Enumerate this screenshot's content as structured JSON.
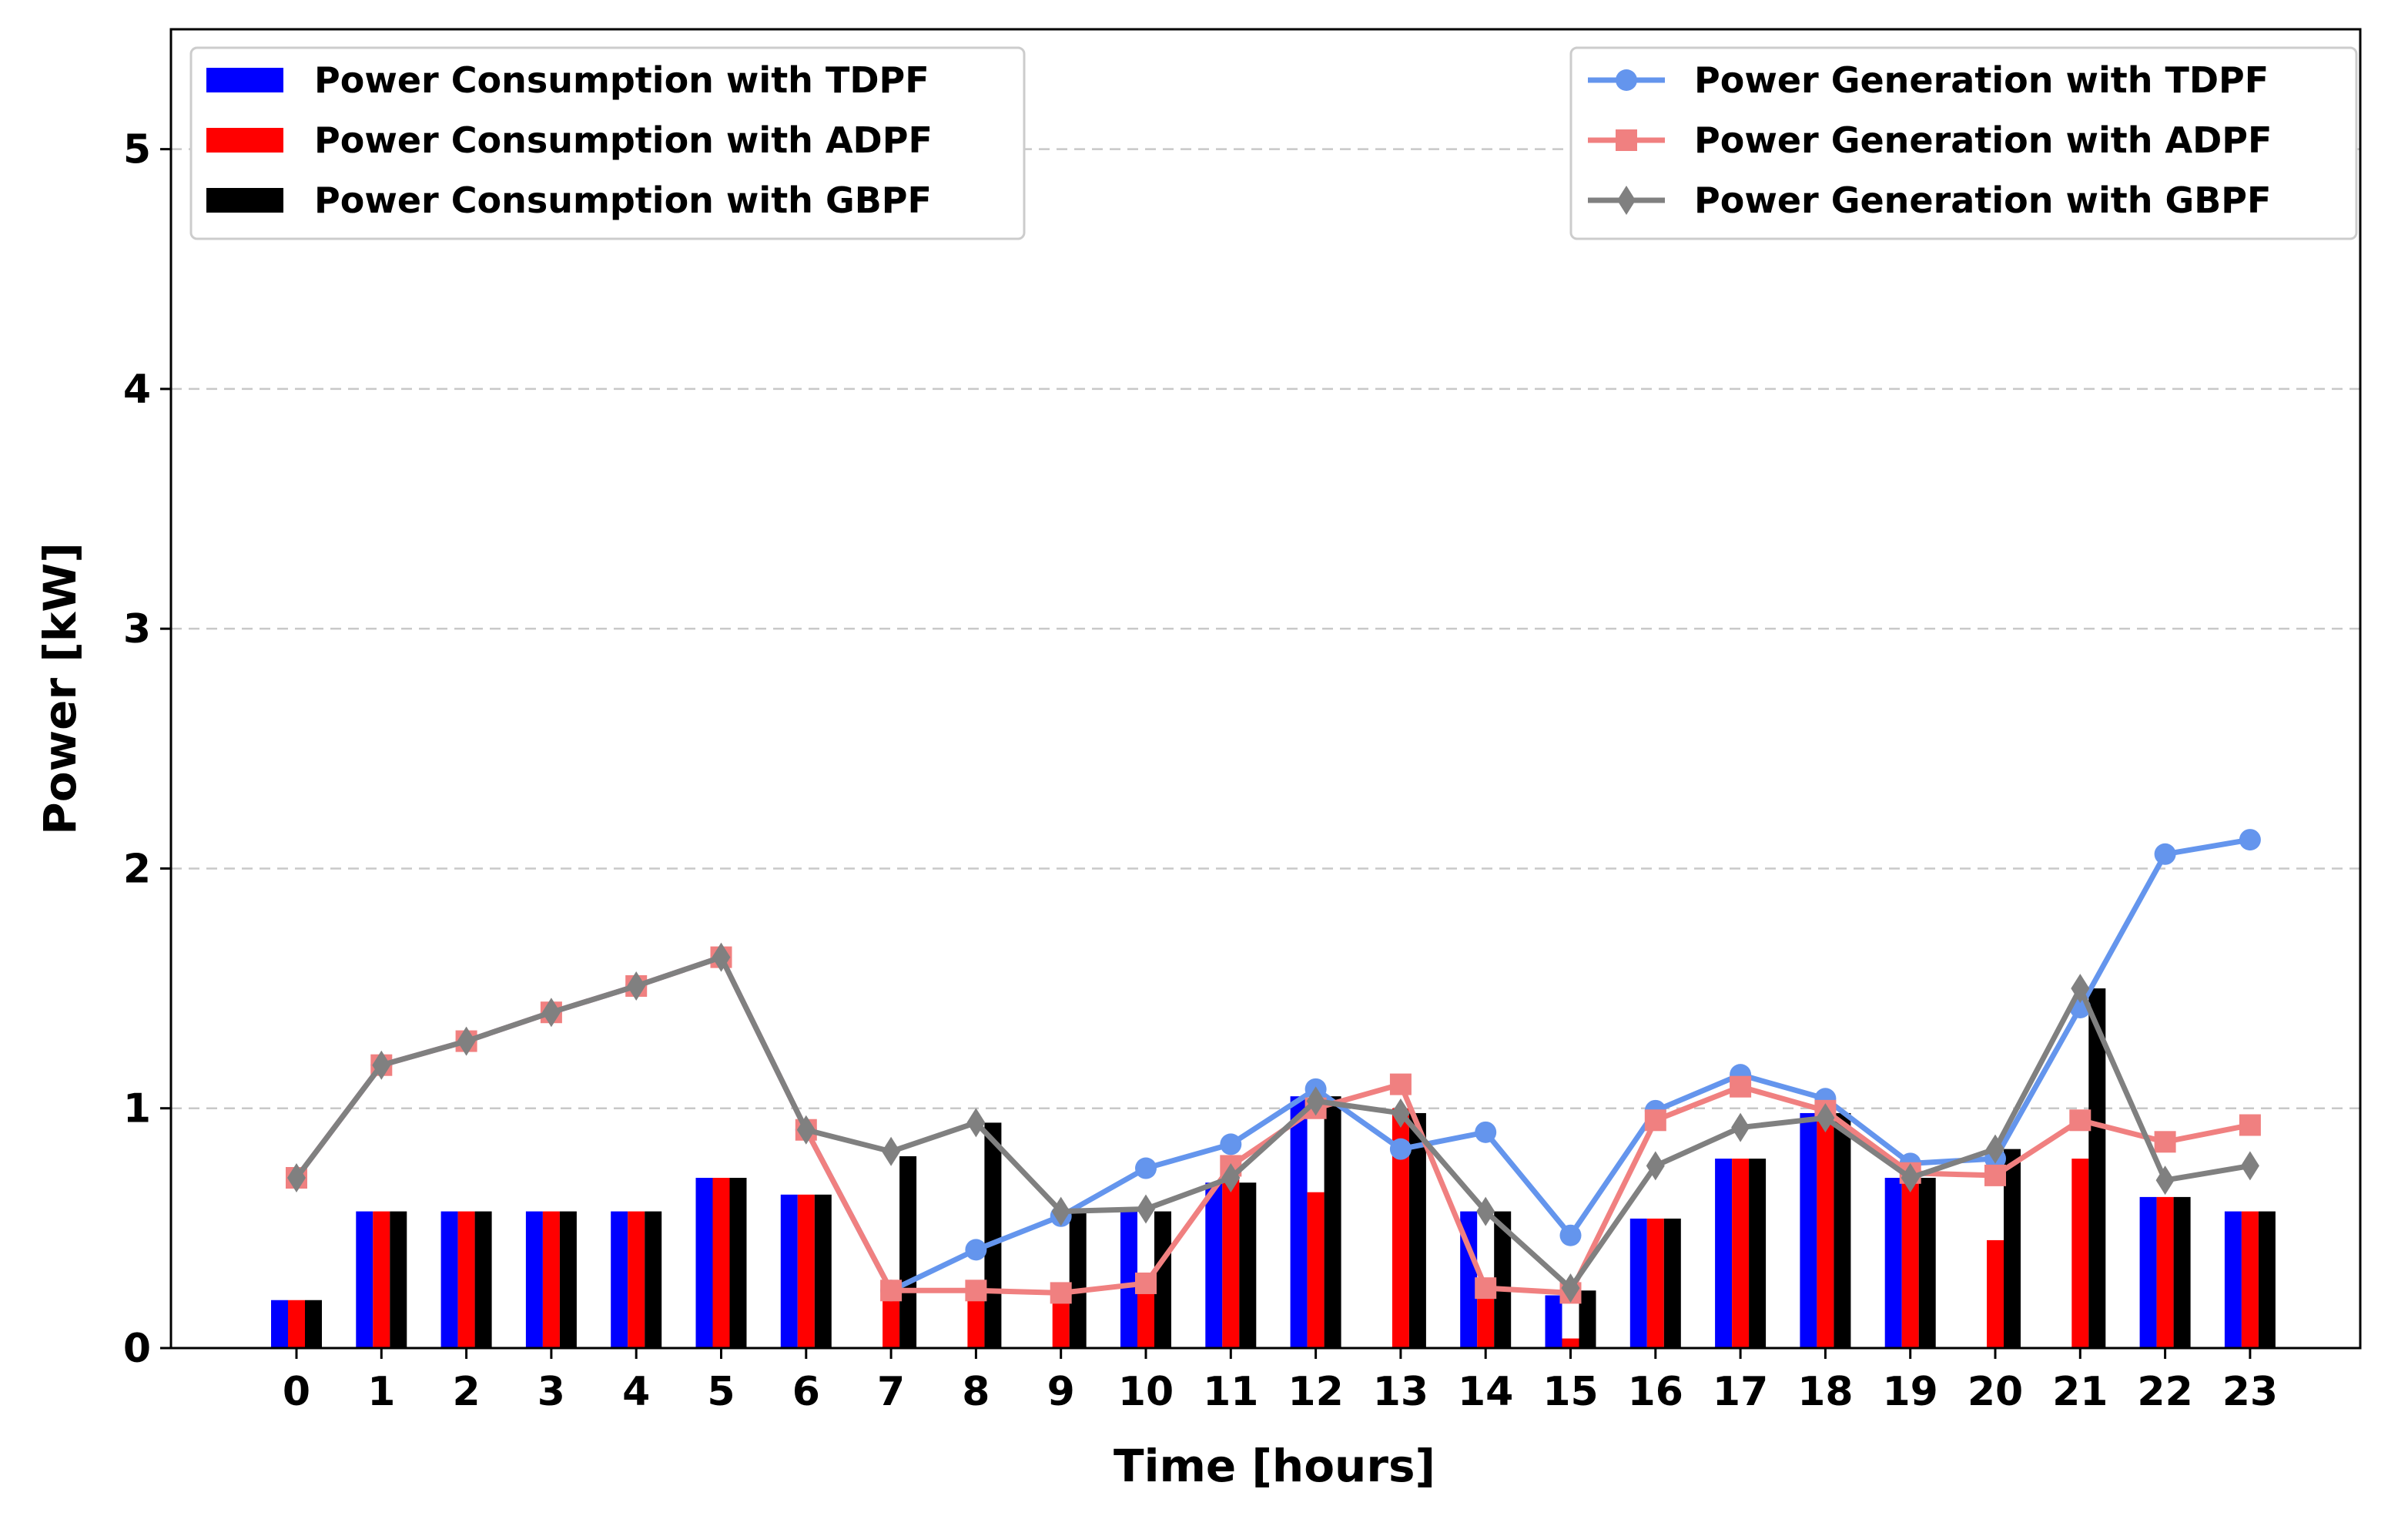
{
  "chart_data": {
    "type": "bar+line",
    "categories": [
      "0",
      "1",
      "2",
      "3",
      "4",
      "5",
      "6",
      "7",
      "8",
      "9",
      "10",
      "11",
      "12",
      "13",
      "14",
      "15",
      "16",
      "17",
      "18",
      "19",
      "20",
      "21",
      "22",
      "23"
    ],
    "xlabel": "Time [hours]",
    "ylabel": "Power [kW]",
    "ylim": [
      0,
      5.5
    ],
    "yticks": [
      0,
      1,
      2,
      3,
      4,
      5
    ],
    "grid": "y-dashed",
    "bar_series": [
      {
        "name": "Power Consumption with TDPF",
        "color": "#0000ff",
        "values": [
          0.2,
          0.57,
          0.57,
          0.57,
          0.57,
          0.71,
          0.64,
          0.0,
          0.0,
          0.0,
          0.57,
          0.69,
          1.05,
          0.0,
          0.57,
          0.22,
          0.54,
          0.79,
          0.98,
          0.71,
          0.0,
          0.0,
          0.63,
          0.57
        ]
      },
      {
        "name": "Power Consumption with ADPF",
        "color": "#ff0000",
        "values": [
          0.2,
          0.57,
          0.57,
          0.57,
          0.57,
          0.71,
          0.64,
          0.24,
          0.24,
          0.23,
          0.27,
          0.76,
          0.65,
          1.0,
          0.25,
          0.04,
          0.54,
          0.79,
          0.98,
          0.71,
          0.45,
          0.79,
          0.63,
          0.57
        ]
      },
      {
        "name": "Power Consumption with GBPF",
        "color": "#000000",
        "values": [
          0.2,
          0.57,
          0.57,
          0.57,
          0.57,
          0.71,
          0.64,
          0.8,
          0.94,
          0.57,
          0.57,
          0.69,
          1.05,
          0.98,
          0.57,
          0.24,
          0.54,
          0.79,
          0.98,
          0.71,
          0.83,
          1.5,
          0.63,
          0.57
        ]
      }
    ],
    "line_series": [
      {
        "name": "Power Generation with TDPF",
        "color": "#6495ed",
        "marker": "circle",
        "values": [
          0.71,
          1.18,
          1.28,
          1.4,
          1.51,
          1.63,
          0.91,
          0.24,
          0.41,
          0.55,
          0.75,
          0.85,
          1.08,
          0.83,
          0.9,
          0.47,
          0.99,
          1.14,
          1.04,
          0.77,
          0.79,
          1.42,
          2.06,
          2.12
        ]
      },
      {
        "name": "Power Generation with ADPF",
        "color": "#f08080",
        "marker": "square",
        "values": [
          0.71,
          1.18,
          1.28,
          1.4,
          1.51,
          1.63,
          0.91,
          0.24,
          0.24,
          0.23,
          0.27,
          0.76,
          1.0,
          1.1,
          0.25,
          0.23,
          0.95,
          1.09,
          0.99,
          0.73,
          0.72,
          0.95,
          0.86,
          0.93
        ]
      },
      {
        "name": "Power Generation with GBPF",
        "color": "#808080",
        "marker": "diamond",
        "values": [
          0.71,
          1.18,
          1.28,
          1.4,
          1.51,
          1.63,
          0.91,
          0.82,
          0.94,
          0.57,
          0.58,
          0.71,
          1.03,
          0.98,
          0.57,
          0.25,
          0.76,
          0.92,
          0.96,
          0.71,
          0.83,
          1.5,
          0.7,
          0.76
        ]
      }
    ],
    "legend_bars_position": "top-left",
    "legend_lines_position": "top-right"
  }
}
